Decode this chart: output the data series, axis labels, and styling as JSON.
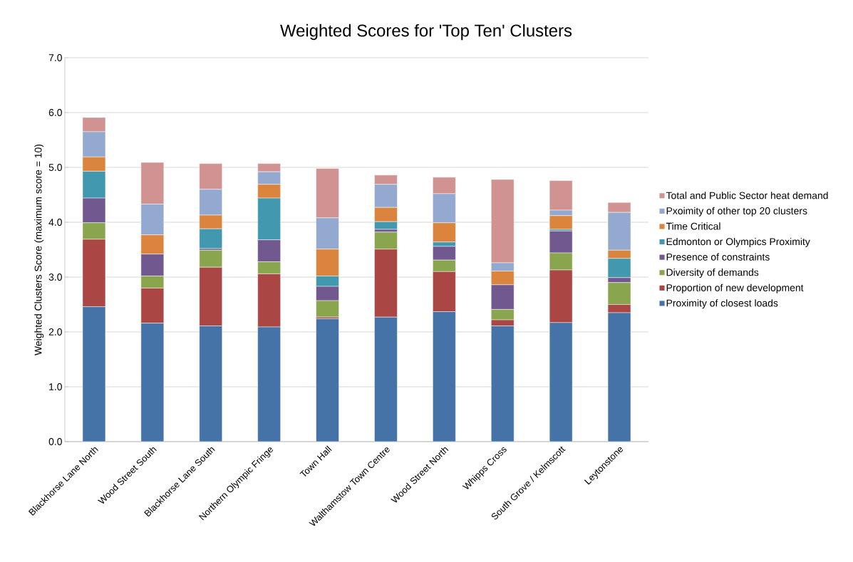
{
  "chart_data": {
    "type": "bar",
    "stacked": true,
    "title": "Weighted Scores for 'Top Ten' Clusters",
    "ylabel": "Weighted Clusters Score (maximum score = 10)",
    "categories": [
      "Blackhorse Lane North",
      "Wood Street South",
      "Blackhorse Lane South",
      "Northern Olympic Fringe",
      "Town Hall",
      "Walthamstow Town Centre",
      "Wood Street North",
      "Whipps Cross",
      "South Grove / Kelmscott",
      "Leytonstone"
    ],
    "ylim": [
      0,
      7
    ],
    "yticks": [
      {
        "value": 0,
        "label": "0.0"
      },
      {
        "value": 1,
        "label": "1.0"
      },
      {
        "value": 2,
        "label": "2.0"
      },
      {
        "value": 3,
        "label": "3.0"
      },
      {
        "value": 4,
        "label": "4.0"
      },
      {
        "value": 5,
        "label": "5.0"
      },
      {
        "value": 6,
        "label": "6.0"
      },
      {
        "value": 7,
        "label": "7.0"
      }
    ],
    "grid": "y",
    "legend": "right",
    "series": [
      {
        "name": "Proximity of closest loads",
        "color": "#4572a7",
        "values": [
          2.46,
          2.16,
          2.11,
          2.09,
          2.24,
          2.27,
          2.37,
          2.11,
          2.17,
          2.35
        ]
      },
      {
        "name": "Proportion of new development",
        "color": "#aa4643",
        "values": [
          1.23,
          0.64,
          1.07,
          0.97,
          0.03,
          1.24,
          0.73,
          0.11,
          0.96,
          0.15
        ]
      },
      {
        "name": "Diversity of demands",
        "color": "#89a54e",
        "values": [
          0.3,
          0.22,
          0.31,
          0.22,
          0.3,
          0.31,
          0.21,
          0.19,
          0.31,
          0.4
        ]
      },
      {
        "name": "Presence of constraints",
        "color": "#71588f",
        "values": [
          0.45,
          0.4,
          0.03,
          0.4,
          0.26,
          0.05,
          0.25,
          0.45,
          0.4,
          0.09
        ]
      },
      {
        "name": "Edmonton or Olympics Proximity",
        "color": "#4198af",
        "values": [
          0.49,
          0,
          0.36,
          0.76,
          0.19,
          0.14,
          0.08,
          0,
          0.03,
          0.35
        ]
      },
      {
        "name": "Time Critical",
        "color": "#db843d",
        "values": [
          0.26,
          0.35,
          0.25,
          0.25,
          0.49,
          0.26,
          0.35,
          0.25,
          0.25,
          0.15
        ]
      },
      {
        "name": "Pxoimity of other top 20 clusters",
        "color": "#93a9cf",
        "values": [
          0.46,
          0.56,
          0.47,
          0.23,
          0.57,
          0.42,
          0.53,
          0.15,
          0.1,
          0.69
        ]
      },
      {
        "name": "Total and Public Sector heat demand",
        "color": "#d19392",
        "values": [
          0.26,
          0.76,
          0.47,
          0.15,
          0.9,
          0.17,
          0.3,
          1.52,
          0.54,
          0.18
        ]
      }
    ]
  }
}
